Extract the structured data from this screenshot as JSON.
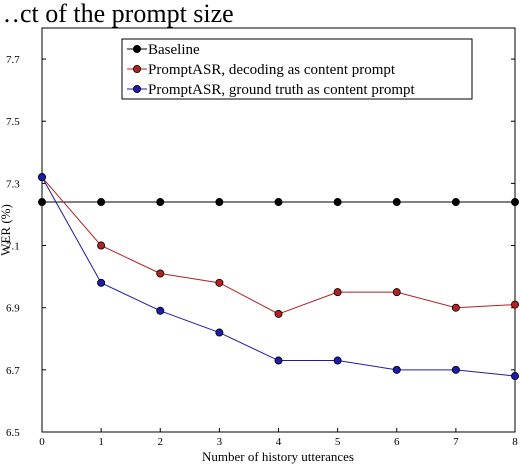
{
  "chart_data": {
    "type": "line",
    "title": "",
    "partial_title": "…ct of the prompt size",
    "xlabel": "Number of history utterances",
    "ylabel": "WER (%)",
    "x": [
      0,
      1,
      2,
      3,
      4,
      5,
      6,
      7,
      8
    ],
    "xlim": [
      0,
      8
    ],
    "ylim": [
      6.5,
      7.8
    ],
    "xticks": [
      "0",
      "1",
      "2",
      "3",
      "4",
      "5",
      "6",
      "7",
      "8"
    ],
    "yticks": [
      "6.5",
      "6.7",
      "6.9",
      "7.1",
      "7.3",
      "7.5",
      "7.7"
    ],
    "grid": false,
    "legend_position": "top-center",
    "series": [
      {
        "name": "Baseline",
        "color": "#000000",
        "marker": "circle",
        "values": [
          7.24,
          7.24,
          7.24,
          7.24,
          7.24,
          7.24,
          7.24,
          7.24,
          7.24
        ]
      },
      {
        "name": "PromptASR, decoding as content prompt",
        "color": "#b22222",
        "marker": "circle",
        "values": [
          7.32,
          7.1,
          7.01,
          6.98,
          6.88,
          6.95,
          6.95,
          6.9,
          6.91
        ]
      },
      {
        "name": "PromptASR, ground truth as content prompt",
        "color": "#1c1ca8",
        "marker": "circle",
        "values": [
          7.32,
          6.98,
          6.89,
          6.82,
          6.73,
          6.73,
          6.7,
          6.7,
          6.68
        ]
      }
    ]
  }
}
